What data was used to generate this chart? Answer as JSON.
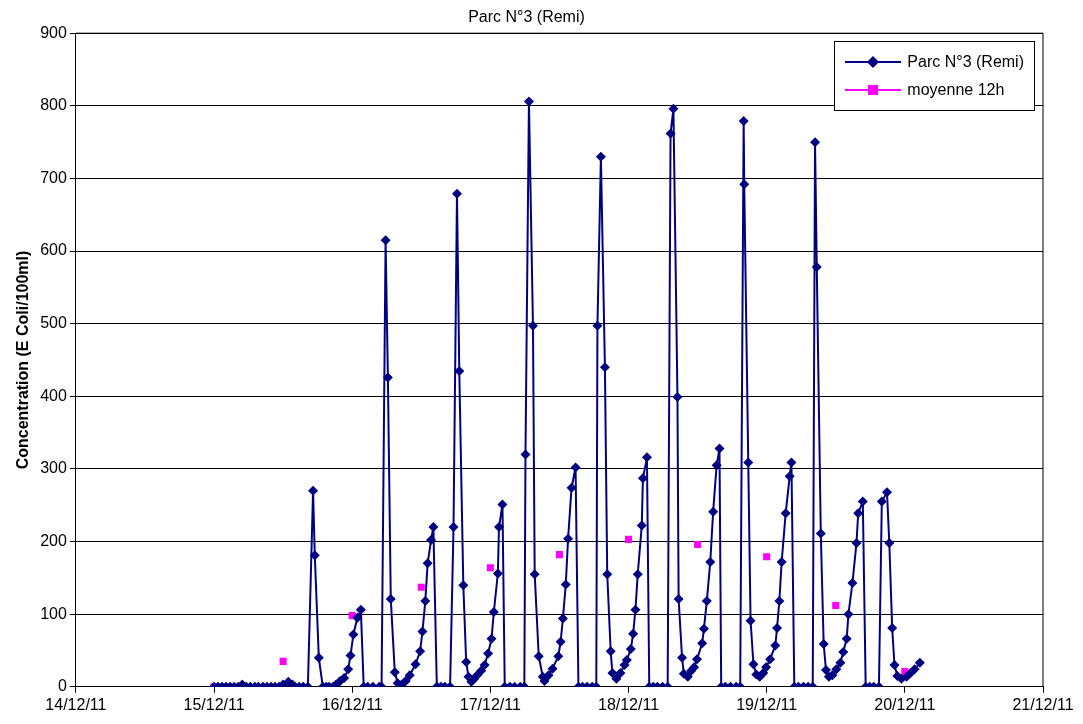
{
  "chart_data": {
    "type": "line",
    "title": "Parc N°3 (Remi)",
    "ylabel": "Concentration (E Coli/100ml)",
    "xlim": [
      "--12-14",
      "--12-21"
    ],
    "xticks": [
      {
        "value": "--12-14",
        "label": "14/12/11"
      },
      {
        "value": "--12-15",
        "label": "15/12/11"
      },
      {
        "value": "--12-16",
        "label": "16/12/11"
      },
      {
        "value": "--12-17",
        "label": "17/12/11"
      },
      {
        "value": "--12-18",
        "label": "18/12/11"
      },
      {
        "value": "--12-19",
        "label": "19/12/11"
      },
      {
        "value": "--12-20",
        "label": "20/12/11"
      },
      {
        "value": "--12-21",
        "label": "21/12/11"
      }
    ],
    "ylim": [
      0,
      900
    ],
    "yticks": [
      0,
      100,
      200,
      300,
      400,
      500,
      600,
      700,
      800,
      900
    ],
    "grid": "y",
    "legend": "top right",
    "series": [
      {
        "name": "Parc N°3  (Remi)",
        "type": "line",
        "color": "#000080",
        "marker": "diamond",
        "x": [
          "--12-15T00:00",
          "--12-15T00:42",
          "--12-15T01:24",
          "--12-15T02:06",
          "--12-15T02:48",
          "--12-15T03:30",
          "--12-15T04:12",
          "--12-15T04:54",
          "--12-15T05:36",
          "--12-15T06:18",
          "--12-15T07:06",
          "--12-15T07:42",
          "--12-15T08:30",
          "--12-15T09:12",
          "--12-15T09:54",
          "--12-15T10:36",
          "--12-15T11:18",
          "--12-15T12:00",
          "--12-15T12:54",
          "--12-15T13:36",
          "--12-15T14:06",
          "--12-15T14:48",
          "--12-15T15:30",
          "--12-15T16:18",
          "--12-15T17:12",
          "--12-15T17:30",
          "--12-15T18:12",
          "--12-15T18:54",
          "--12-15T19:30",
          "--12-15T20:00",
          "--12-15T20:42",
          "--12-15T21:12",
          "--12-15T21:54",
          "--12-15T22:36",
          "--12-15T23:18",
          "--12-15T23:42",
          "--12-16T00:12",
          "--12-16T00:54",
          "--12-16T01:30",
          "--12-16T02:00",
          "--12-16T02:42",
          "--12-16T03:36",
          "--12-16T04:42",
          "--12-16T05:06",
          "--12-16T05:48",
          "--12-16T06:12",
          "--12-16T06:42",
          "--12-16T07:24",
          "--12-16T07:54",
          "--12-16T08:36",
          "--12-16T09:18",
          "--12-16T10:00",
          "--12-16T11:00",
          "--12-16T11:48",
          "--12-16T12:12",
          "--12-16T12:42",
          "--12-16T13:06",
          "--12-16T13:42",
          "--12-16T14:06",
          "--12-16T14:42",
          "--12-16T15:24",
          "--12-16T16:06",
          "--12-16T17:00",
          "--12-16T17:36",
          "--12-16T18:12",
          "--12-16T18:36",
          "--12-16T19:18",
          "--12-16T19:48",
          "--12-16T20:12",
          "--12-16T20:42",
          "--12-16T21:12",
          "--12-16T21:42",
          "--12-16T22:24",
          "--12-16T23:00",
          "--12-16T23:36",
          "--12-17T00:12",
          "--12-17T00:36",
          "--12-17T01:18",
          "--12-17T01:30",
          "--12-17T02:06",
          "--12-17T02:30",
          "--12-17T03:24",
          "--12-17T04:12",
          "--12-17T05:12",
          "--12-17T05:54",
          "--12-17T06:06",
          "--12-17T06:42",
          "--12-17T07:24",
          "--12-17T07:42",
          "--12-17T08:24",
          "--12-17T09:06",
          "--12-17T09:24",
          "--12-17T10:06",
          "--12-17T10:48",
          "--12-17T11:48",
          "--12-17T12:12",
          "--12-17T12:36",
          "--12-17T13:06",
          "--12-17T13:30",
          "--12-17T14:06",
          "--12-17T14:48",
          "--12-17T15:18",
          "--12-17T16:00",
          "--12-17T16:48",
          "--12-17T17:42",
          "--12-17T18:24",
          "--12-17T18:36",
          "--12-17T19:12",
          "--12-17T19:54",
          "--12-17T20:18",
          "--12-17T20:54",
          "--12-17T21:12",
          "--12-17T21:54",
          "--12-17T22:36",
          "--12-17T23:18",
          "--12-17T23:42",
          "--12-18T00:24",
          "--12-18T00:48",
          "--12-18T01:12",
          "--12-18T01:36",
          "--12-18T02:18",
          "--12-18T02:30",
          "--12-18T03:12",
          "--12-18T03:36",
          "--12-18T04:18",
          "--12-18T05:00",
          "--12-18T05:54",
          "--12-18T06:48",
          "--12-18T07:18",
          "--12-18T07:48",
          "--12-18T08:30",
          "--12-18T08:42",
          "--12-18T09:18",
          "--12-18T09:36",
          "--12-18T10:18",
          "--12-18T10:54",
          "--12-18T11:24",
          "--12-18T11:54",
          "--12-18T12:48",
          "--12-18T13:06",
          "--12-18T13:36",
          "--12-18T14:12",
          "--12-18T14:42",
          "--12-18T15:18",
          "--12-18T15:48",
          "--12-18T16:06",
          "--12-18T16:48",
          "--12-18T17:42",
          "--12-18T18:42",
          "--12-18T19:24",
          "--12-18T20:00",
          "--12-18T20:06",
          "--12-18T20:48",
          "--12-18T21:12",
          "--12-18T21:42",
          "--12-18T22:12",
          "--12-18T22:48",
          "--12-18T23:24",
          "--12-18T23:54",
          "--12-19T00:36",
          "--12-19T01:30",
          "--12-19T01:48",
          "--12-19T02:12",
          "--12-19T02:36",
          "--12-19T03:18",
          "--12-19T04:00",
          "--12-19T04:18",
          "--12-19T04:48",
          "--12-19T05:30",
          "--12-19T06:24",
          "--12-19T07:12",
          "--12-19T08:00",
          "--12-19T08:24",
          "--12-19T08:42",
          "--12-19T09:24",
          "--12-19T09:54",
          "--12-19T10:18",
          "--12-19T10:48",
          "--12-19T11:24",
          "--12-19T12:06",
          "--12-19T12:48",
          "--12-19T13:18",
          "--12-19T13:54",
          "--12-19T14:12",
          "--12-19T14:54",
          "--12-19T15:36",
          "--12-19T15:54",
          "--12-19T16:42",
          "--12-19T17:12",
          "--12-19T17:54",
          "--12-19T18:36",
          "--12-19T19:30",
          "--12-19T20:00",
          "--12-19T20:54",
          "--12-19T21:18",
          "--12-19T21:48",
          "--12-19T22:12",
          "--12-19T22:42",
          "--12-19T23:24",
          "--12-20T00:18",
          "--12-20T01:00",
          "--12-20T01:42",
          "--12-20T02:36"
        ],
        "values": [
          0,
          0,
          0,
          0,
          0,
          0,
          0,
          3,
          0,
          0,
          0,
          0,
          0,
          0,
          0,
          0,
          0,
          3,
          7,
          3,
          0,
          0,
          0,
          0,
          270,
          181,
          40,
          0,
          0,
          0,
          0,
          3,
          8,
          12,
          24,
          43,
          72,
          95,
          106,
          0,
          0,
          0,
          0,
          0,
          615,
          426,
          121,
          20,
          5,
          3,
          8,
          16,
          31,
          49,
          76,
          118,
          170,
          202,
          220,
          0,
          0,
          0,
          0,
          220,
          679,
          435,
          140,
          34,
          14,
          7,
          11,
          16,
          22,
          30,
          46,
          66,
          103,
          156,
          220,
          251,
          0,
          0,
          0,
          0,
          0,
          320,
          806,
          497,
          155,
          42,
          14,
          8,
          16,
          25,
          42,
          62,
          94,
          141,
          204,
          274,
          302,
          0,
          0,
          0,
          0,
          0,
          497,
          730,
          440,
          155,
          49,
          19,
          11,
          19,
          30,
          37,
          52,
          73,
          106,
          155,
          222,
          287,
          316,
          0,
          0,
          0,
          0,
          0,
          762,
          796,
          399,
          121,
          40,
          18,
          14,
          22,
          27,
          38,
          60,
          80,
          118,
          172,
          241,
          305,
          328,
          0,
          0,
          0,
          0,
          0,
          779,
          692,
          309,
          91,
          31,
          17,
          14,
          19,
          27,
          38,
          57,
          81,
          118,
          172,
          239,
          290,
          309,
          0,
          0,
          0,
          0,
          0,
          750,
          578,
          211,
          59,
          23,
          14,
          16,
          24,
          33,
          48,
          66,
          100,
          143,
          198,
          239,
          255,
          0,
          0,
          0,
          0,
          255,
          268,
          198,
          81,
          30,
          15,
          11,
          14,
          19,
          24,
          33
        ]
      },
      {
        "name": "moyenne 12h",
        "type": "scatter",
        "color": "#ff00ff",
        "marker": "square",
        "x": [
          "--12-15T00:00",
          "--12-15T12:00",
          "--12-16T00:00",
          "--12-16T12:00",
          "--12-17T00:00",
          "--12-17T12:00",
          "--12-18T00:00",
          "--12-18T12:00",
          "--12-19T00:00",
          "--12-19T12:00",
          "--12-20T00:00"
        ],
        "values": [
          0,
          35,
          98,
          137,
          164,
          182,
          203,
          196,
          179,
          112,
          21
        ]
      }
    ]
  }
}
